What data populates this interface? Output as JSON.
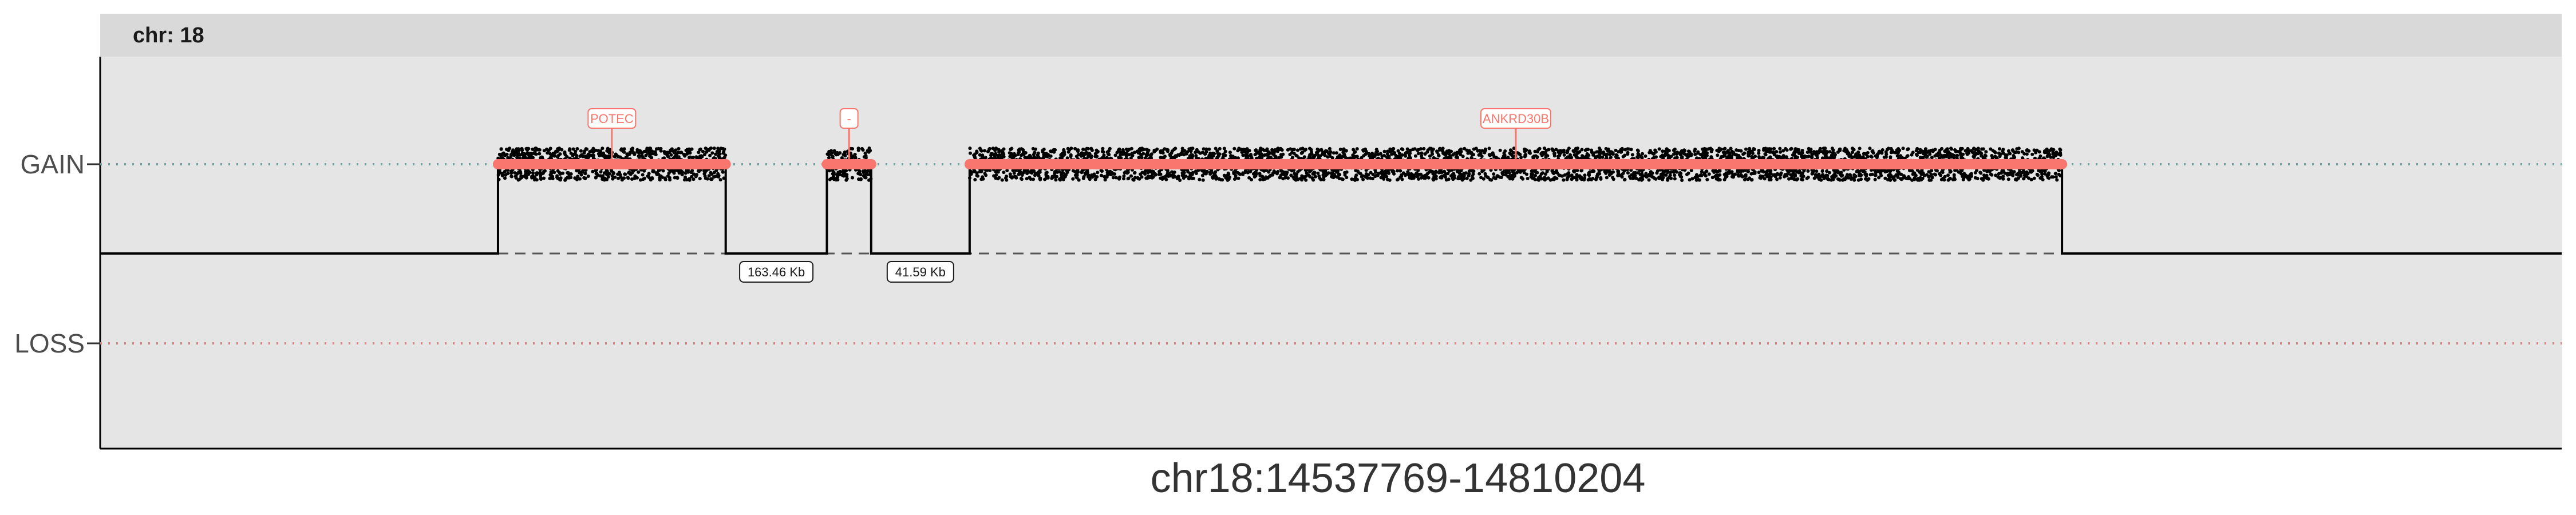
{
  "chart_data": {
    "type": "line",
    "facet": "chr: 18",
    "xlabel": "chr18:14537769-14810204",
    "ylabel": "",
    "y_categories": [
      "LOSS",
      "GAIN"
    ],
    "grid": false,
    "x_range": [
      14537769,
      14810204
    ],
    "baseline_state": "NEUTRAL",
    "segments": [
      {
        "name": "POTEC",
        "state": "GAIN",
        "start": 14581800,
        "end": 14607000,
        "label": "POTEC"
      },
      {
        "name": "-",
        "state": "GAIN",
        "start": 14618200,
        "end": 14623100,
        "label": "-"
      },
      {
        "name": "ANKRD30B",
        "state": "GAIN",
        "start": 14634000,
        "end": 14754900,
        "label": "ANKRD30B"
      }
    ],
    "gaps": [
      {
        "start": 14607000,
        "end": 14618200,
        "label": "163.46 Kb"
      },
      {
        "start": 14623100,
        "end": 14634000,
        "label": "41.59 Kb"
      }
    ],
    "colors": {
      "gain_dotted": "#66a3a3",
      "loss_dotted": "#e87a7a",
      "segment": "#f8766d",
      "probes": "#000000",
      "path": "#000000"
    }
  }
}
